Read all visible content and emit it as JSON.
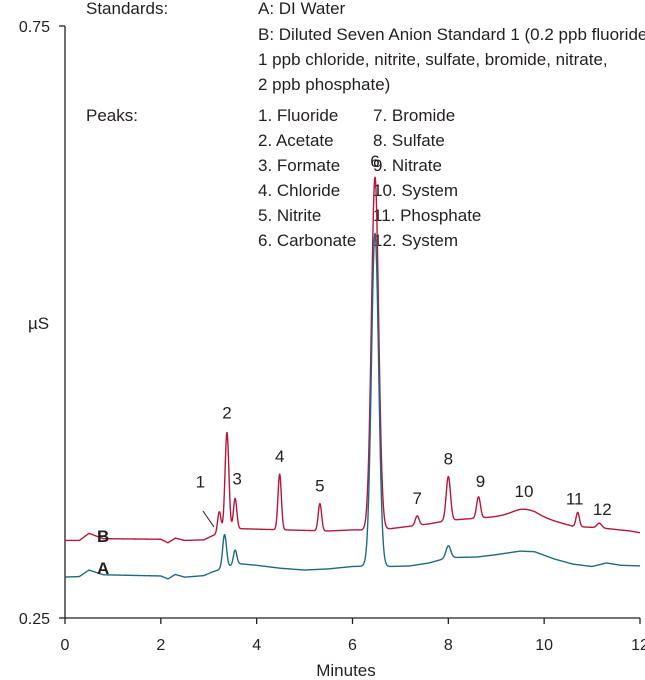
{
  "chart_data": {
    "type": "line",
    "xlabel": "Minutes",
    "ylabel": "µS",
    "xlim": [
      0,
      12
    ],
    "ylim": [
      0.25,
      0.75
    ],
    "x_ticks": [
      "0",
      "2",
      "4",
      "6",
      "8",
      "10",
      "12"
    ],
    "y_ticks": [
      "0.25",
      "0.75"
    ],
    "grid": false,
    "colors": {
      "B": "#b5173a",
      "A": "#1e6b80",
      "axis": "#231f20"
    },
    "legend": {
      "standards_label": "Standards:",
      "standards": [
        "A: DI Water",
        "B: Diluted Seven Anion Standard 1 (0.2 ppb fluoride",
        "1 ppb chloride, nitrite, sulfate, bromide, nitrate,",
        "2 ppb phosphate)"
      ],
      "peaks_label": "Peaks:",
      "peaks_col1": [
        "1. Fluoride",
        "2. Acetate",
        "3. Formate",
        "4. Chloride",
        "5. Nitrite",
        "6. Carbonate"
      ],
      "peaks_col2": [
        "7. Bromide",
        "8. Sulfate",
        "9. Nitrate",
        "10. System",
        "11. Phosphate",
        "12. System"
      ]
    },
    "series": [
      {
        "name": "B",
        "baseline": [
          [
            0,
            0.3155
          ],
          [
            0.3,
            0.3155
          ],
          [
            0.5,
            0.3215
          ],
          [
            0.8,
            0.317
          ],
          [
            2.0,
            0.3165
          ],
          [
            2.15,
            0.3135
          ],
          [
            2.3,
            0.3175
          ],
          [
            2.5,
            0.3155
          ],
          [
            2.9,
            0.316
          ],
          [
            3.05,
            0.319
          ],
          [
            3.3,
            0.323
          ],
          [
            3.6,
            0.3255
          ],
          [
            4.5,
            0.3245
          ],
          [
            5.5,
            0.3235
          ],
          [
            6.05,
            0.3245
          ],
          [
            6.4,
            0.324
          ],
          [
            6.8,
            0.3255
          ],
          [
            7.2,
            0.3275
          ],
          [
            7.6,
            0.3295
          ],
          [
            8.0,
            0.3325
          ],
          [
            8.5,
            0.334
          ],
          [
            9.0,
            0.3355
          ],
          [
            9.5,
            0.337
          ],
          [
            9.8,
            0.3365
          ],
          [
            10.2,
            0.332
          ],
          [
            10.6,
            0.3275
          ],
          [
            11.2,
            0.326
          ],
          [
            11.8,
            0.3235
          ],
          [
            12,
            0.322
          ]
        ],
        "peaks": [
          {
            "label": "1",
            "t": 3.22,
            "height": 0.018,
            "width": 0.035
          },
          {
            "label": "2",
            "t": 3.38,
            "height": 0.083,
            "width": 0.04
          },
          {
            "label": "3",
            "t": 3.55,
            "height": 0.026,
            "width": 0.035
          },
          {
            "label": "4",
            "t": 4.48,
            "height": 0.047,
            "width": 0.035
          },
          {
            "label": "5",
            "t": 5.32,
            "height": 0.023,
            "width": 0.035
          },
          {
            "label": "6",
            "t": 6.47,
            "height": 0.298,
            "width": 0.075
          },
          {
            "label": "7",
            "t": 7.35,
            "height": 0.008,
            "width": 0.04
          },
          {
            "label": "8",
            "t": 8.0,
            "height": 0.037,
            "width": 0.045
          },
          {
            "label": "9",
            "t": 8.63,
            "height": 0.018,
            "width": 0.04
          },
          {
            "label": "10",
            "t": 9.58,
            "height": 0.005,
            "width": 0.25
          },
          {
            "label": "11",
            "t": 10.7,
            "height": 0.012,
            "width": 0.035
          },
          {
            "label": "12",
            "t": 11.15,
            "height": 0.004,
            "width": 0.05
          }
        ]
      },
      {
        "name": "A",
        "baseline": [
          [
            0,
            0.2846
          ],
          [
            0.3,
            0.285
          ],
          [
            0.5,
            0.2905
          ],
          [
            0.8,
            0.2865
          ],
          [
            2.0,
            0.2855
          ],
          [
            2.15,
            0.283
          ],
          [
            2.3,
            0.2868
          ],
          [
            2.5,
            0.2845
          ],
          [
            2.9,
            0.2858
          ],
          [
            3.05,
            0.2885
          ],
          [
            3.3,
            0.292
          ],
          [
            3.6,
            0.296
          ],
          [
            4.0,
            0.2945
          ],
          [
            4.5,
            0.292
          ],
          [
            5.0,
            0.2905
          ],
          [
            5.5,
            0.2915
          ],
          [
            6.0,
            0.2935
          ],
          [
            6.4,
            0.294
          ],
          [
            6.8,
            0.2935
          ],
          [
            7.2,
            0.294
          ],
          [
            7.6,
            0.2965
          ],
          [
            8.0,
            0.301
          ],
          [
            8.6,
            0.3015
          ],
          [
            9.0,
            0.3035
          ],
          [
            9.5,
            0.3065
          ],
          [
            9.8,
            0.306
          ],
          [
            10.2,
            0.3
          ],
          [
            10.6,
            0.2955
          ],
          [
            11.0,
            0.2935
          ],
          [
            11.3,
            0.2965
          ],
          [
            11.6,
            0.2945
          ],
          [
            12,
            0.294
          ]
        ],
        "peaks": [
          {
            "t": 3.33,
            "height": 0.028,
            "width": 0.04
          },
          {
            "t": 3.55,
            "height": 0.012,
            "width": 0.035
          },
          {
            "t": 6.47,
            "height": 0.281,
            "width": 0.075
          },
          {
            "t": 8.0,
            "height": 0.01,
            "width": 0.05
          }
        ]
      }
    ],
    "peak_numbers": [
      "1",
      "2",
      "3",
      "4",
      "5",
      "6",
      "7",
      "8",
      "9",
      "10",
      "11",
      "12"
    ]
  }
}
